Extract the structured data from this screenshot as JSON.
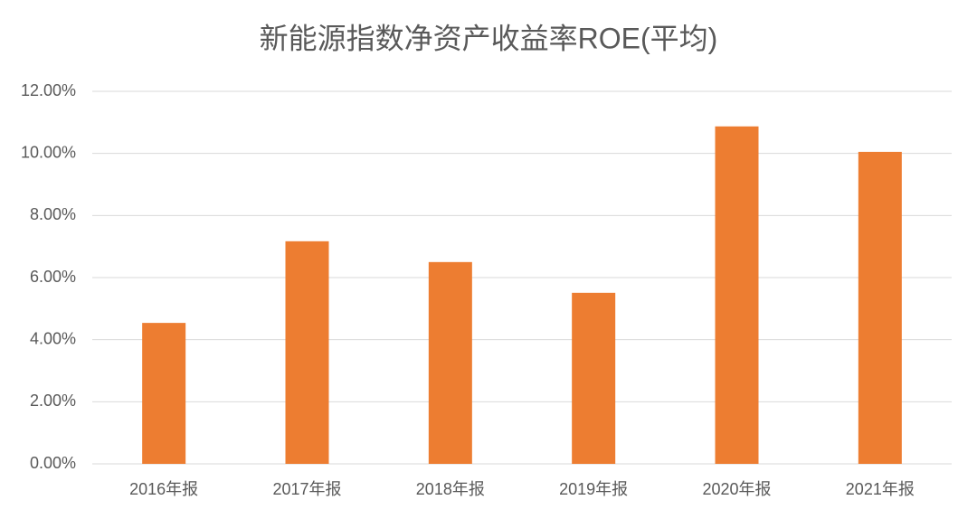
{
  "chart_data": {
    "type": "bar",
    "title": "新能源指数净资产收益率ROE(平均)",
    "categories": [
      "2016年报",
      "2017年报",
      "2018年报",
      "2019年报",
      "2020年报",
      "2021年报"
    ],
    "values": [
      4.54,
      7.17,
      6.5,
      5.51,
      10.87,
      10.05
    ],
    "color": "#ed7d31",
    "ylim": [
      0,
      12
    ],
    "yticks": [
      {
        "value": 0,
        "label": "0.00%"
      },
      {
        "value": 2,
        "label": "2.00%"
      },
      {
        "value": 4,
        "label": "4.00%"
      },
      {
        "value": 6,
        "label": "6.00%"
      },
      {
        "value": 8,
        "label": "8.00%"
      },
      {
        "value": 10,
        "label": "10.00%"
      },
      {
        "value": 12,
        "label": "12.00%"
      }
    ],
    "grid": true
  }
}
